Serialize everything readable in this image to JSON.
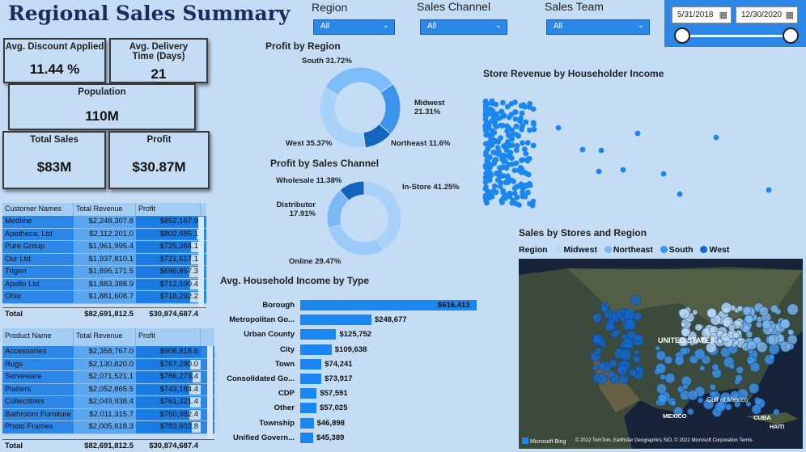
{
  "title": "Regional Sales Summary",
  "filters": [
    {
      "label": "Region",
      "value": "All"
    },
    {
      "label": "Sales Channel",
      "value": "All"
    },
    {
      "label": "Sales Team",
      "value": "All"
    }
  ],
  "date_range": {
    "start": "5/31/2018",
    "end": "12/30/2020"
  },
  "kpis": {
    "avg_discount": {
      "label": "Avg. Discount Applied",
      "value": "11.44 %"
    },
    "avg_delivery": {
      "label": "Avg. Delivery Time (Days)",
      "value": "21"
    },
    "population": {
      "label": "Population",
      "value": "110M"
    },
    "total_sales": {
      "label": "Total Sales",
      "value": "$83M"
    },
    "profit": {
      "label": "Profit",
      "value": "$30.87M"
    }
  },
  "customer_table": {
    "headers": [
      "Customer Names",
      "Total Revenue",
      "Profit"
    ],
    "rows": [
      {
        "name": "Medline",
        "revenue": "$2,248,307.8",
        "profit": "$852,167.9",
        "pct": 1.0
      },
      {
        "name": "Apotheca, Ltd",
        "revenue": "$2,112,201.0",
        "profit": "$802,985.1",
        "pct": 0.94
      },
      {
        "name": "Pure Group",
        "revenue": "$1,961,995.4",
        "profit": "$725,384.1",
        "pct": 0.85
      },
      {
        "name": "Our Ltd",
        "revenue": "$1,937,810.1",
        "profit": "$721,617.1",
        "pct": 0.85
      },
      {
        "name": "Trigen",
        "revenue": "$1,895,171.5",
        "profit": "$696,857.3",
        "pct": 0.82
      },
      {
        "name": "Apollo Ltd",
        "revenue": "$1,883,388.9",
        "profit": "$712,100.4",
        "pct": 0.84
      },
      {
        "name": "Ohio",
        "revenue": "$1,881,608.7",
        "profit": "$718,292.2",
        "pct": 0.84
      }
    ],
    "total_label": "Total",
    "total_revenue": "$82,691,812.5",
    "total_profit": "$30,874,687.4"
  },
  "product_table": {
    "headers": [
      "Product Name",
      "Total Revenue",
      "Profit"
    ],
    "rows": [
      {
        "name": "Accessories",
        "revenue": "$2,358,767.0",
        "profit": "$908,818.6",
        "pct": 1.0
      },
      {
        "name": "Rugs",
        "revenue": "$2,130,820.0",
        "profit": "$767,280.0",
        "pct": 0.84
      },
      {
        "name": "Serveware",
        "revenue": "$2,071,521.1",
        "profit": "$786,273.4",
        "pct": 0.87
      },
      {
        "name": "Platters",
        "revenue": "$2,052,865.5",
        "profit": "$743,184.4",
        "pct": 0.82
      },
      {
        "name": "Collectibles",
        "revenue": "$2,049,938.4",
        "profit": "$761,321.4",
        "pct": 0.84
      },
      {
        "name": "Bathroom Furniture",
        "revenue": "$2,011,315.7",
        "profit": "$750,982.4",
        "pct": 0.83
      },
      {
        "name": "Photo Frames",
        "revenue": "$2,005,618.3",
        "profit": "$783,602.8",
        "pct": 0.86
      }
    ],
    "total_label": "Total",
    "total_revenue": "$82,691,812.5",
    "total_profit": "$30,874,687.4"
  },
  "profit_by_region": {
    "title": "Profit by Region",
    "labels": [
      "South 31.72%",
      "Midwest 21.31%",
      "Northeast 11.6%",
      "West 35.37%"
    ]
  },
  "profit_by_channel": {
    "title": "Profit by Sales Channel",
    "labels": [
      "Wholesale 11.38%",
      "In-Store 41.25%",
      "Distributor 17.91%",
      "Online 29.47%"
    ]
  },
  "scatter_title": "Store Revenue by Householder Income",
  "map": {
    "title": "Sales by Stores and Region",
    "legend_title": "Region",
    "legend": [
      {
        "name": "Midwest",
        "color": "#b8d8f8"
      },
      {
        "name": "Northeast",
        "color": "#7cb8f0"
      },
      {
        "name": "South",
        "color": "#3c94ec"
      },
      {
        "name": "West",
        "color": "#1468c8"
      }
    ],
    "labels": {
      "us": "UNITED STATES",
      "gulf": "Gulf of Mexico",
      "mexico": "MEXICO",
      "cuba": "CUBA",
      "haiti": "HAITI"
    },
    "brand": "Microsoft Bing",
    "copyright": "© 2022 TomTom, Earthstar Geographics SIO, © 2022 Microsoft Corporation  Terms"
  },
  "chart_data": [
    {
      "type": "pie",
      "title": "Profit by Region",
      "categories": [
        "South",
        "Midwest",
        "Northeast",
        "West"
      ],
      "values": [
        31.72,
        21.31,
        11.6,
        35.37
      ],
      "colors": [
        "#7cbcf8",
        "#3c94ec",
        "#1264be",
        "#a8d2fa"
      ]
    },
    {
      "type": "pie",
      "title": "Profit by Sales Channel",
      "categories": [
        "In-Store",
        "Online",
        "Distributor",
        "Wholesale"
      ],
      "values": [
        41.25,
        29.47,
        17.91,
        11.38
      ],
      "colors": [
        "#a8d2fa",
        "#9ccafa",
        "#7cb8f4",
        "#1264be"
      ]
    },
    {
      "type": "bar",
      "title": "Avg. Household Income by Type",
      "orientation": "horizontal",
      "categories": [
        "Borough",
        "Metropolitan Go...",
        "Urban County",
        "City",
        "Town",
        "Consolidated Go...",
        "CDP",
        "Other",
        "Township",
        "Unified Govern..."
      ],
      "values": [
        616413,
        248677,
        125752,
        109638,
        74241,
        73917,
        57591,
        57025,
        46898,
        45389
      ],
      "value_labels": [
        "$616,413",
        "$248,677",
        "$125,752",
        "$109,638",
        "$74,241",
        "$73,917",
        "$57,591",
        "$57,025",
        "$46,898",
        "$45,389"
      ]
    },
    {
      "type": "scatter",
      "title": "Store Revenue by Householder Income"
    }
  ]
}
